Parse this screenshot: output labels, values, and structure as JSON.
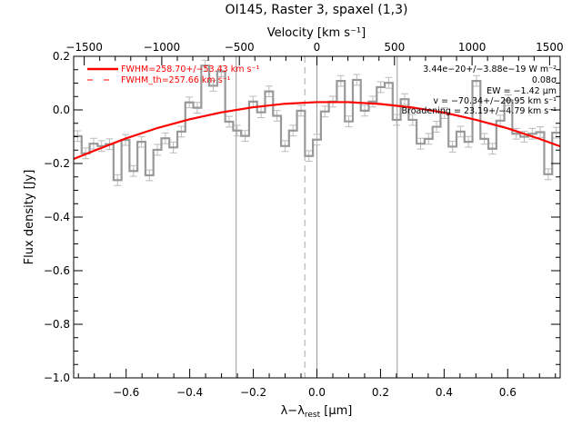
{
  "chart_data": {
    "type": "line",
    "title": "OI145, Raster 3, spaxel (1,3)",
    "xlabel": "λ−λrest [µm]",
    "xlabel_parts": {
      "main": "λ−λ",
      "sub": "rest",
      "unit": " [µm]"
    },
    "ylabel": "Flux density [Jy]",
    "top_xlabel": "Velocity [km s⁻¹]",
    "xlim": [
      -0.765,
      0.765
    ],
    "ylim": [
      -1.0,
      0.2
    ],
    "top_xlim": [
      -1568,
      1568
    ],
    "x_ticks": [
      -0.6,
      -0.4,
      -0.2,
      0.0,
      0.2,
      0.4,
      0.6
    ],
    "x_tick_labels": [
      "−0.6",
      "−0.4",
      "−0.2",
      "0.0",
      "0.2",
      "0.4",
      "0.6"
    ],
    "y_ticks": [
      0.2,
      0.0,
      -0.2,
      -0.4,
      -0.6,
      -0.8,
      -1.0
    ],
    "y_tick_labels": [
      "0.2",
      "0.0",
      "−0.2",
      "−0.4",
      "−0.6",
      "−0.8",
      "−1.0"
    ],
    "top_ticks": [
      -1500,
      -1000,
      -500,
      0,
      500,
      1000,
      1500
    ],
    "top_tick_labels": [
      "−1500",
      "−1000",
      "−500",
      "0",
      "500",
      "1000",
      "1500"
    ],
    "grid": false,
    "legend_position": "top-left",
    "series": [
      {
        "name": "Spectrum",
        "style": "step",
        "color": "#999999",
        "errorbar_color": "#bbbbbb",
        "error": 0.02,
        "values": [
          -0.098,
          -0.162,
          -0.126,
          -0.135,
          -0.128,
          -0.262,
          -0.112,
          -0.228,
          -0.119,
          -0.244,
          -0.149,
          -0.106,
          -0.14,
          -0.081,
          0.028,
          0.008,
          0.165,
          0.09,
          0.144,
          -0.044,
          -0.077,
          -0.097,
          0.031,
          -0.009,
          0.069,
          -0.022,
          -0.135,
          -0.077,
          -0.003,
          -0.172,
          -0.111,
          -0.006,
          0.031,
          0.108,
          -0.043,
          0.112,
          -0.003,
          0.031,
          0.085,
          0.101,
          -0.037,
          0.04,
          -0.037,
          -0.126,
          -0.108,
          -0.063,
          -0.012,
          -0.137,
          -0.081,
          -0.119,
          0.108,
          -0.108,
          -0.145,
          -0.04,
          0.036,
          -0.089,
          -0.1,
          -0.089,
          -0.083,
          -0.24,
          -0.085
        ]
      },
      {
        "name": "FWHM=258.70+/−53.43 km s⁻¹",
        "style": "line",
        "color": "#ff0000",
        "x": [
          -0.765,
          -0.7,
          -0.6,
          -0.5,
          -0.4,
          -0.3,
          -0.2,
          -0.1,
          0.0,
          0.1,
          0.2,
          0.3,
          0.4,
          0.5,
          0.6,
          0.7,
          0.765
        ],
        "y": [
          -0.183,
          -0.152,
          -0.106,
          -0.067,
          -0.035,
          -0.009,
          0.01,
          0.023,
          0.029,
          0.029,
          0.022,
          0.009,
          -0.01,
          -0.037,
          -0.069,
          -0.108,
          -0.136
        ]
      }
    ],
    "vertical_lines": [
      {
        "x": -0.254,
        "style": "solid",
        "color": "#999999"
      },
      {
        "x": 0.0,
        "style": "solid",
        "color": "#999999"
      },
      {
        "x": 0.2525,
        "style": "solid",
        "color": "#999999"
      },
      {
        "x": -0.038,
        "style": "dashed",
        "color": "#aaaaaa"
      }
    ],
    "legend": [
      {
        "label": "FWHM=258.70+/−53.43 km s⁻¹",
        "style": "solid",
        "color": "#ff0000"
      },
      {
        "label": "FWHM_th=257.66 km s⁻¹",
        "style": "dashed",
        "color": "#ff0000"
      }
    ],
    "annotations": [
      "3.44e−20+/−3.88e−19 W m⁻²",
      "0.08σ",
      "EW = −1.42 µm",
      "v = −70.34+/−20.95 km s⁻¹",
      "Broadening = 23.19+/−4.79 km s⁻¹"
    ]
  }
}
